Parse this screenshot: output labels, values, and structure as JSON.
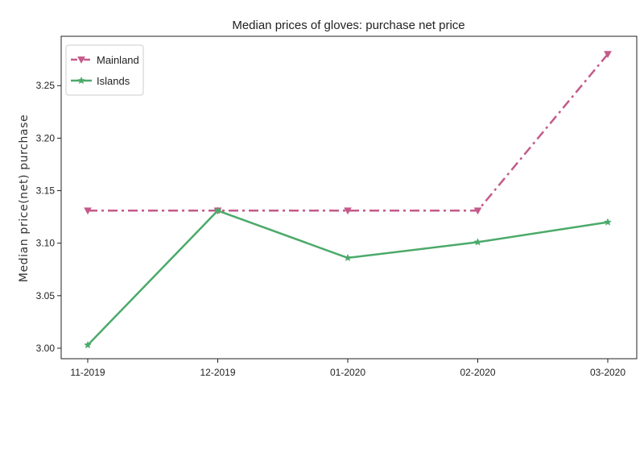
{
  "chart_data": {
    "type": "line",
    "title": "Median prices of gloves: purchase net price",
    "xlabel": "",
    "ylabel": "Median price(net) purchase",
    "categories": [
      "11-2019",
      "12-2019",
      "01-2020",
      "02-2020",
      "03-2020"
    ],
    "ylim": [
      2.99,
      3.297
    ],
    "yticks": [
      3.0,
      3.05,
      3.1,
      3.15,
      3.2,
      3.25
    ],
    "ytick_labels": [
      "3.00",
      "3.05",
      "3.10",
      "3.15",
      "3.20",
      "3.25"
    ],
    "grid": false,
    "legend_position": "top-left",
    "series": [
      {
        "name": "Mainland",
        "values": [
          3.131,
          3.131,
          3.131,
          3.131,
          3.28
        ],
        "color": "#c45a8a",
        "line_style": "dash-dot",
        "marker": "triangle-down"
      },
      {
        "name": "Islands",
        "values": [
          3.003,
          3.131,
          3.086,
          3.101,
          3.12
        ],
        "color": "#4caa6a",
        "line_style": "solid",
        "marker": "star"
      }
    ]
  }
}
